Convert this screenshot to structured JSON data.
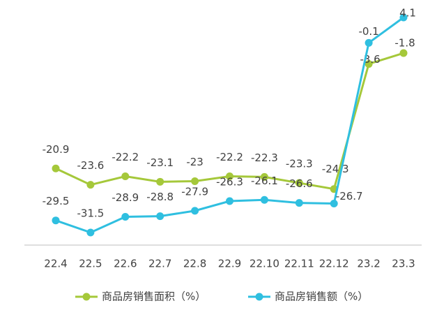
{
  "chart_data": {
    "type": "line",
    "categories": [
      "22.4",
      "22.5",
      "22.6",
      "22.7",
      "22.8",
      "22.9",
      "22.10",
      "22.11",
      "22.12",
      "23.2",
      "23.3"
    ],
    "series": [
      {
        "name": "商品房销售面积（%）",
        "color": "#a5c83a",
        "values": [
          -20.9,
          -23.6,
          -22.2,
          -23.1,
          -23.0,
          -22.2,
          -22.3,
          -23.3,
          -24.3,
          -3.6,
          -1.8
        ]
      },
      {
        "name": "商品房销售额（%）",
        "color": "#2fbfe0",
        "values": [
          -29.5,
          -31.5,
          -28.9,
          -28.8,
          -27.9,
          -26.3,
          -26.1,
          -26.6,
          -26.7,
          -0.1,
          4.1
        ]
      }
    ]
  }
}
